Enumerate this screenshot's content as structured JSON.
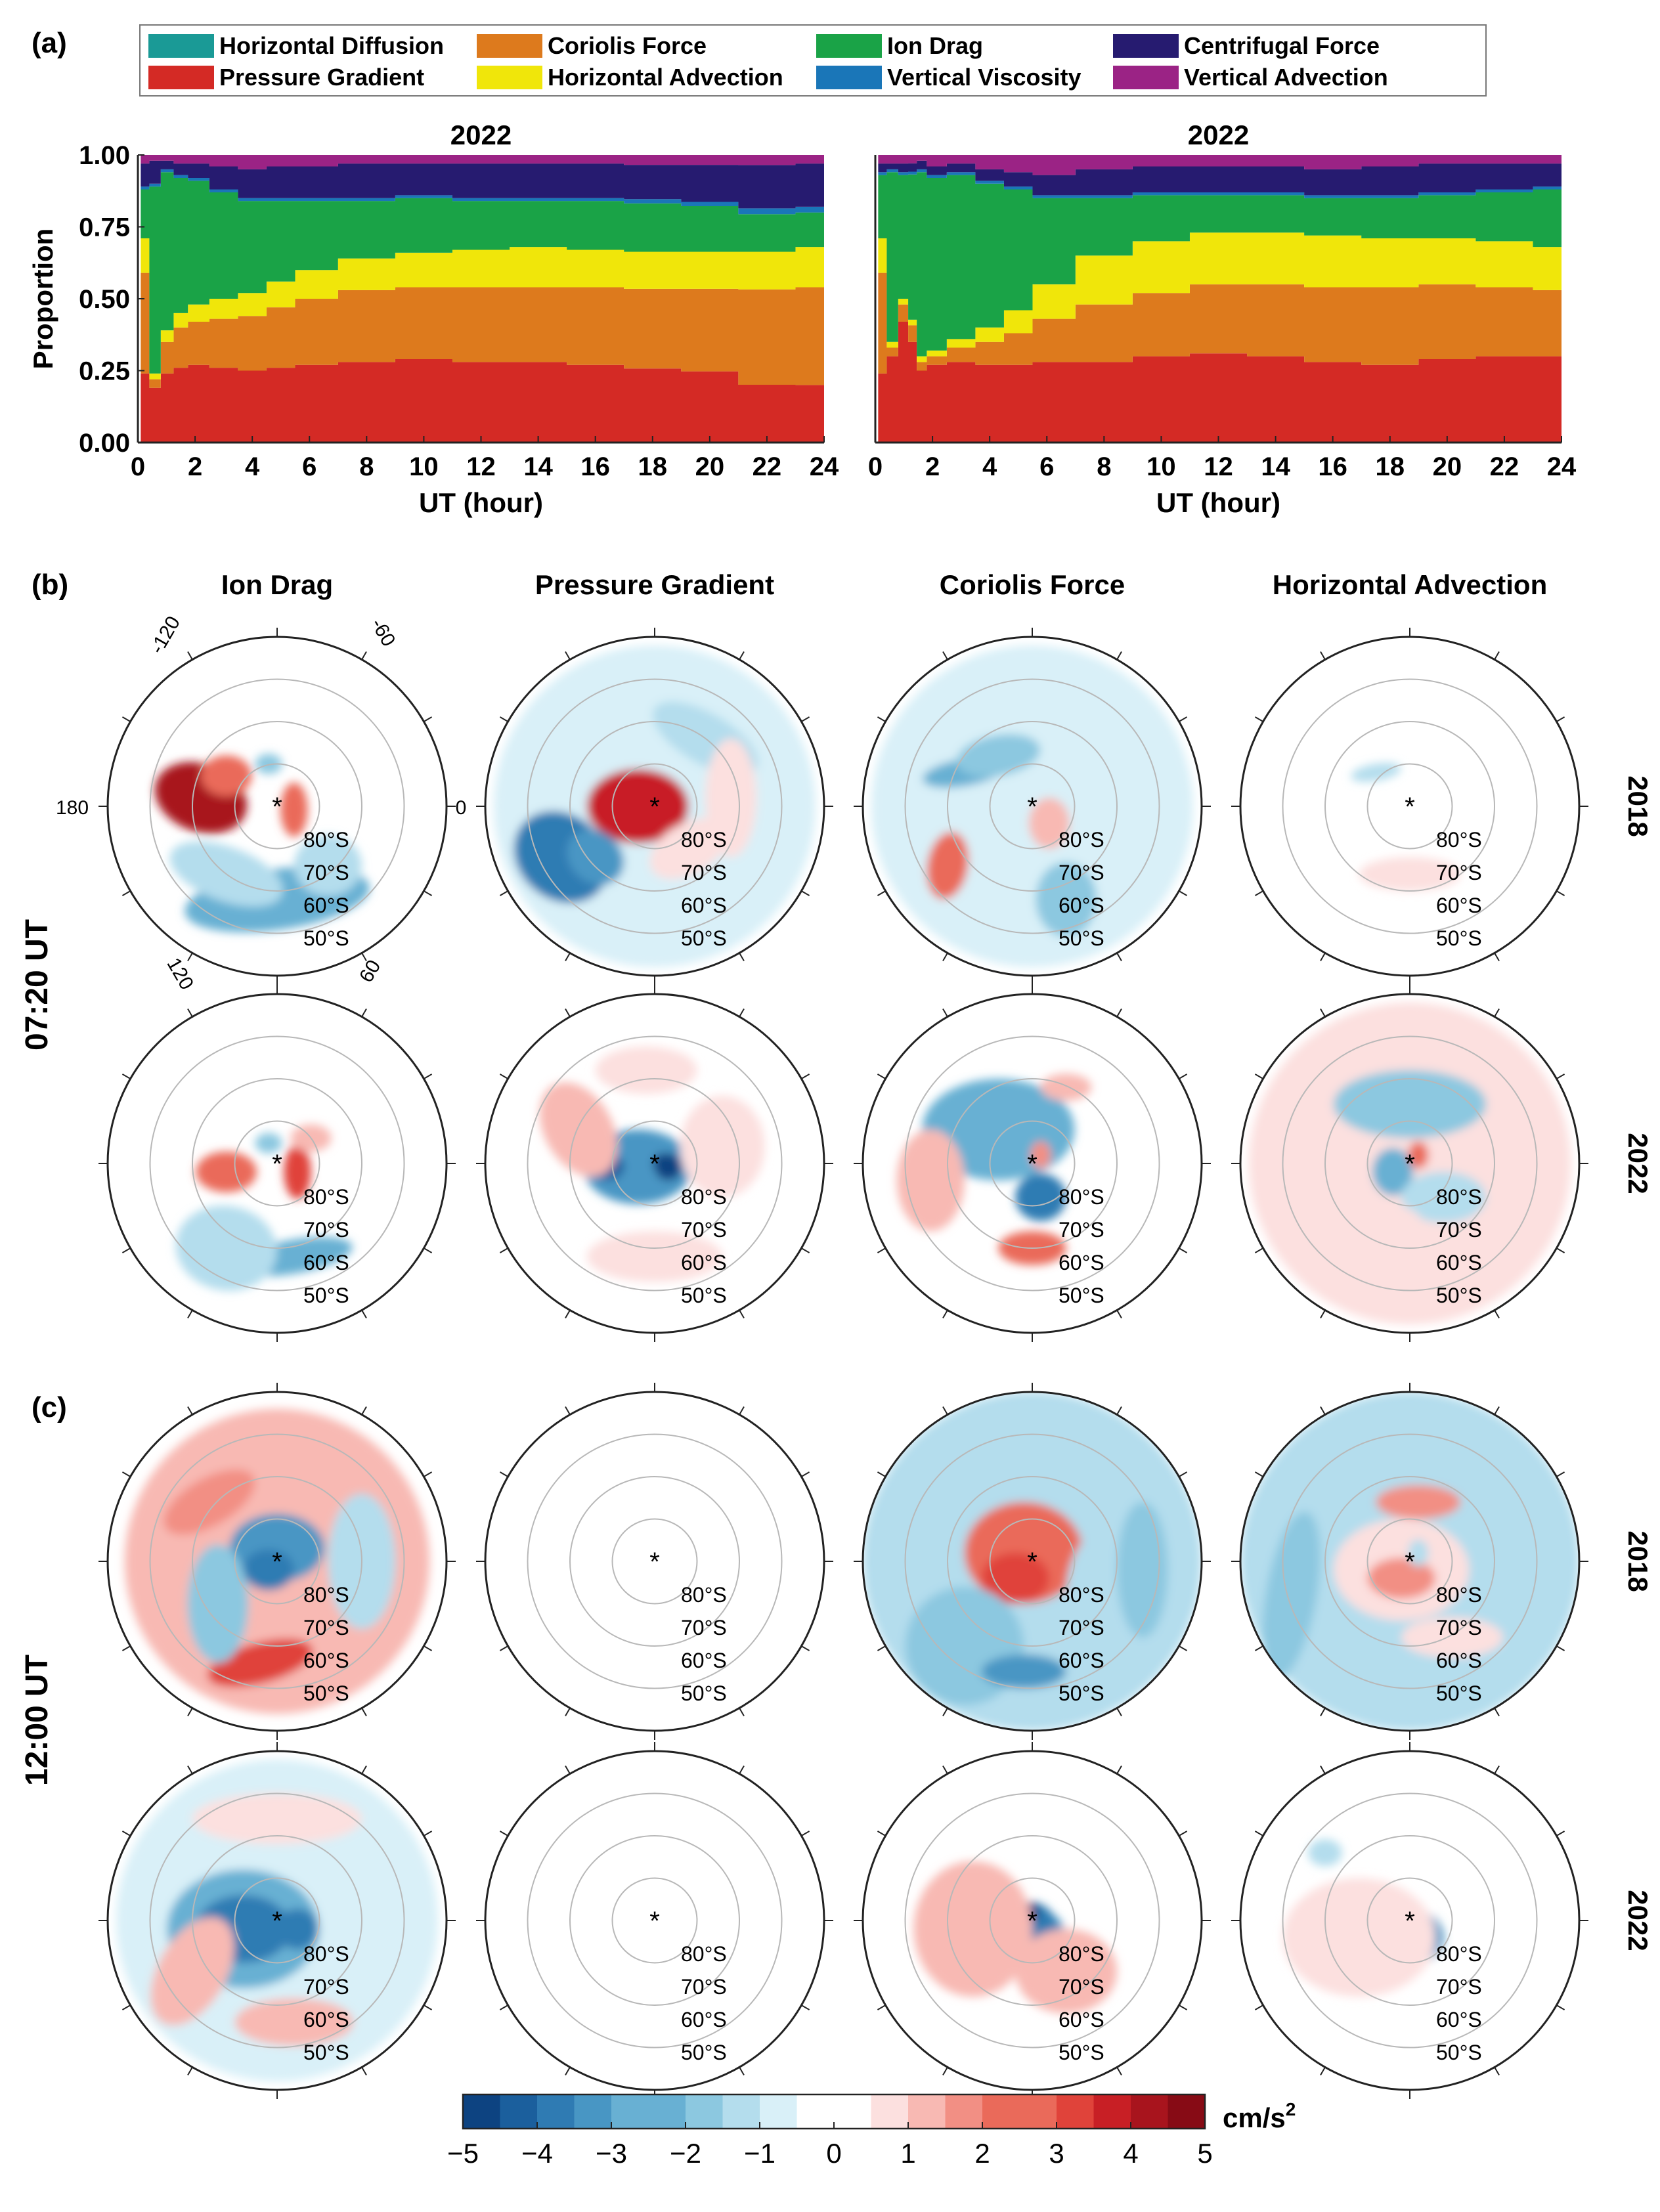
{
  "figure": {
    "panel_labels": [
      "(a)",
      "(b)",
      "(c)"
    ],
    "row_group_labels": [
      "07:20 UT",
      "12:00 UT"
    ],
    "row_year_labels": [
      "2018",
      "2022",
      "2018",
      "2022"
    ],
    "column_titles": [
      "Ion Drag",
      "Pressure Gradient",
      "Coriolis Force",
      "Horizontal Advection"
    ],
    "lat_labels": [
      "80°S",
      "70°S",
      "60°S",
      "50°S"
    ],
    "lon_labels": [
      "-120",
      "-60",
      "180",
      "0",
      "120",
      "60"
    ],
    "colors": {
      "pressure_gradient": "#d42a25",
      "coriolis_force": "#dd7a1d",
      "horizontal_advection": "#f0e60a",
      "ion_drag": "#1aa347",
      "vertical_viscosity": "#1a76b8",
      "centrifugal_force": "#261b70",
      "vertical_advection": "#9b2385",
      "horizontal_diffusion": "#1a9a96"
    }
  },
  "chart_data": [
    {
      "type": "area",
      "panel": "(a) left",
      "title": "2022",
      "xlabel": "UT (hour)",
      "ylabel": "Proportion",
      "xlim": [
        0,
        24
      ],
      "ylim": [
        0,
        1
      ],
      "xticks": [
        "0",
        "2",
        "4",
        "6",
        "8",
        "10",
        "12",
        "14",
        "16",
        "18",
        "20",
        "22",
        "24"
      ],
      "yticks": [
        "0.00",
        "0.25",
        "0.50",
        "0.75",
        "1.00"
      ],
      "x": [
        0.2,
        0.6,
        1,
        1.5,
        2,
        3,
        4,
        5,
        6,
        8,
        10,
        12,
        14,
        16,
        18,
        20,
        22,
        24
      ],
      "series": [
        {
          "name": "Pressure Gradient",
          "values": [
            0.24,
            0.19,
            0.24,
            0.26,
            0.27,
            0.26,
            0.25,
            0.26,
            0.27,
            0.28,
            0.29,
            0.28,
            0.28,
            0.27,
            0.26,
            0.25,
            0.2,
            0.2
          ]
        },
        {
          "name": "Coriolis Force",
          "values": [
            0.35,
            0.03,
            0.11,
            0.14,
            0.15,
            0.17,
            0.19,
            0.21,
            0.23,
            0.25,
            0.25,
            0.26,
            0.26,
            0.27,
            0.28,
            0.29,
            0.33,
            0.34
          ]
        },
        {
          "name": "Horizontal Advection",
          "values": [
            0.12,
            0.02,
            0.04,
            0.05,
            0.06,
            0.07,
            0.08,
            0.09,
            0.1,
            0.11,
            0.12,
            0.13,
            0.14,
            0.13,
            0.13,
            0.13,
            0.13,
            0.14
          ]
        },
        {
          "name": "Ion Drag",
          "values": [
            0.17,
            0.65,
            0.55,
            0.47,
            0.43,
            0.37,
            0.32,
            0.28,
            0.24,
            0.2,
            0.19,
            0.17,
            0.16,
            0.17,
            0.17,
            0.16,
            0.13,
            0.12
          ]
        },
        {
          "name": "Vertical Viscosity",
          "values": [
            0.01,
            0.01,
            0.01,
            0.01,
            0.01,
            0.01,
            0.01,
            0.01,
            0.01,
            0.01,
            0.01,
            0.01,
            0.01,
            0.01,
            0.015,
            0.015,
            0.02,
            0.02
          ]
        },
        {
          "name": "Centrifugal Force",
          "values": [
            0.08,
            0.08,
            0.03,
            0.04,
            0.05,
            0.08,
            0.1,
            0.11,
            0.11,
            0.12,
            0.11,
            0.12,
            0.12,
            0.12,
            0.12,
            0.13,
            0.15,
            0.15
          ]
        },
        {
          "name": "Vertical Advection",
          "values": [
            0.03,
            0.02,
            0.02,
            0.03,
            0.03,
            0.04,
            0.05,
            0.04,
            0.04,
            0.03,
            0.03,
            0.03,
            0.03,
            0.03,
            0.035,
            0.035,
            0.035,
            0.03
          ]
        }
      ]
    },
    {
      "type": "area",
      "panel": "(a) right",
      "title": "2022",
      "xlabel": "UT (hour)",
      "ylabel": "",
      "xlim": [
        0,
        24
      ],
      "ylim": [
        0,
        1
      ],
      "xticks": [
        "0",
        "2",
        "4",
        "6",
        "8",
        "10",
        "12",
        "14",
        "16",
        "18",
        "20",
        "22",
        "24"
      ],
      "yticks": [],
      "x": [
        0.2,
        0.6,
        1,
        1.3,
        1.6,
        2,
        3,
        4,
        5,
        6,
        8,
        10,
        12,
        14,
        16,
        18,
        20,
        22,
        24
      ],
      "series": [
        {
          "name": "Pressure Gradient",
          "values": [
            0.24,
            0.3,
            0.42,
            0.36,
            0.25,
            0.27,
            0.28,
            0.27,
            0.27,
            0.28,
            0.28,
            0.3,
            0.31,
            0.3,
            0.28,
            0.27,
            0.29,
            0.3,
            0.3
          ]
        },
        {
          "name": "Coriolis Force",
          "values": [
            0.35,
            0.03,
            0.06,
            0.06,
            0.03,
            0.03,
            0.05,
            0.08,
            0.11,
            0.15,
            0.2,
            0.22,
            0.24,
            0.25,
            0.26,
            0.27,
            0.26,
            0.24,
            0.23
          ]
        },
        {
          "name": "Horizontal Advection",
          "values": [
            0.12,
            0.02,
            0.02,
            0.02,
            0.02,
            0.02,
            0.03,
            0.05,
            0.08,
            0.12,
            0.17,
            0.18,
            0.18,
            0.18,
            0.18,
            0.17,
            0.16,
            0.16,
            0.15
          ]
        },
        {
          "name": "Ion Drag",
          "values": [
            0.22,
            0.59,
            0.43,
            0.52,
            0.64,
            0.6,
            0.57,
            0.5,
            0.42,
            0.3,
            0.2,
            0.16,
            0.13,
            0.13,
            0.13,
            0.14,
            0.15,
            0.17,
            0.2
          ]
        },
        {
          "name": "Vertical Viscosity",
          "values": [
            0.01,
            0.01,
            0.01,
            0.01,
            0.01,
            0.01,
            0.01,
            0.01,
            0.01,
            0.01,
            0.01,
            0.01,
            0.01,
            0.01,
            0.01,
            0.01,
            0.01,
            0.01,
            0.01
          ]
        },
        {
          "name": "Centrifugal Force",
          "values": [
            0.03,
            0.02,
            0.03,
            0.03,
            0.03,
            0.03,
            0.03,
            0.04,
            0.05,
            0.07,
            0.09,
            0.09,
            0.09,
            0.09,
            0.09,
            0.1,
            0.1,
            0.09,
            0.08
          ]
        },
        {
          "name": "Vertical Advection",
          "values": [
            0.03,
            0.03,
            0.03,
            0.03,
            0.02,
            0.04,
            0.03,
            0.05,
            0.06,
            0.07,
            0.05,
            0.04,
            0.04,
            0.04,
            0.05,
            0.04,
            0.03,
            0.03,
            0.03
          ]
        }
      ]
    },
    {
      "type": "heatmap",
      "panel": "(b)/(c) polar maps",
      "colorbar": {
        "unit": "cm/s",
        "unit_superscript": "2",
        "ticks": [
          "−5",
          "−4",
          "−3",
          "−2",
          "−1",
          "0",
          "1",
          "2",
          "3",
          "4",
          "5"
        ],
        "range": [
          -5,
          5
        ],
        "levels": 20
      }
    }
  ],
  "legend": {
    "entries": [
      {
        "name": "Horizontal Diffusion",
        "color": "#1a9a96"
      },
      {
        "name": "Coriolis Force",
        "color": "#dd7a1d"
      },
      {
        "name": "Ion Drag",
        "color": "#1aa347"
      },
      {
        "name": "Centrifugal Force",
        "color": "#261b70"
      },
      {
        "name": "Pressure Gradient",
        "color": "#d42a25"
      },
      {
        "name": "Horizontal Advection",
        "color": "#f0e60a"
      },
      {
        "name": "Vertical Viscosity",
        "color": "#1a76b8"
      },
      {
        "name": "Vertical Advection",
        "color": "#9b2385"
      }
    ]
  }
}
